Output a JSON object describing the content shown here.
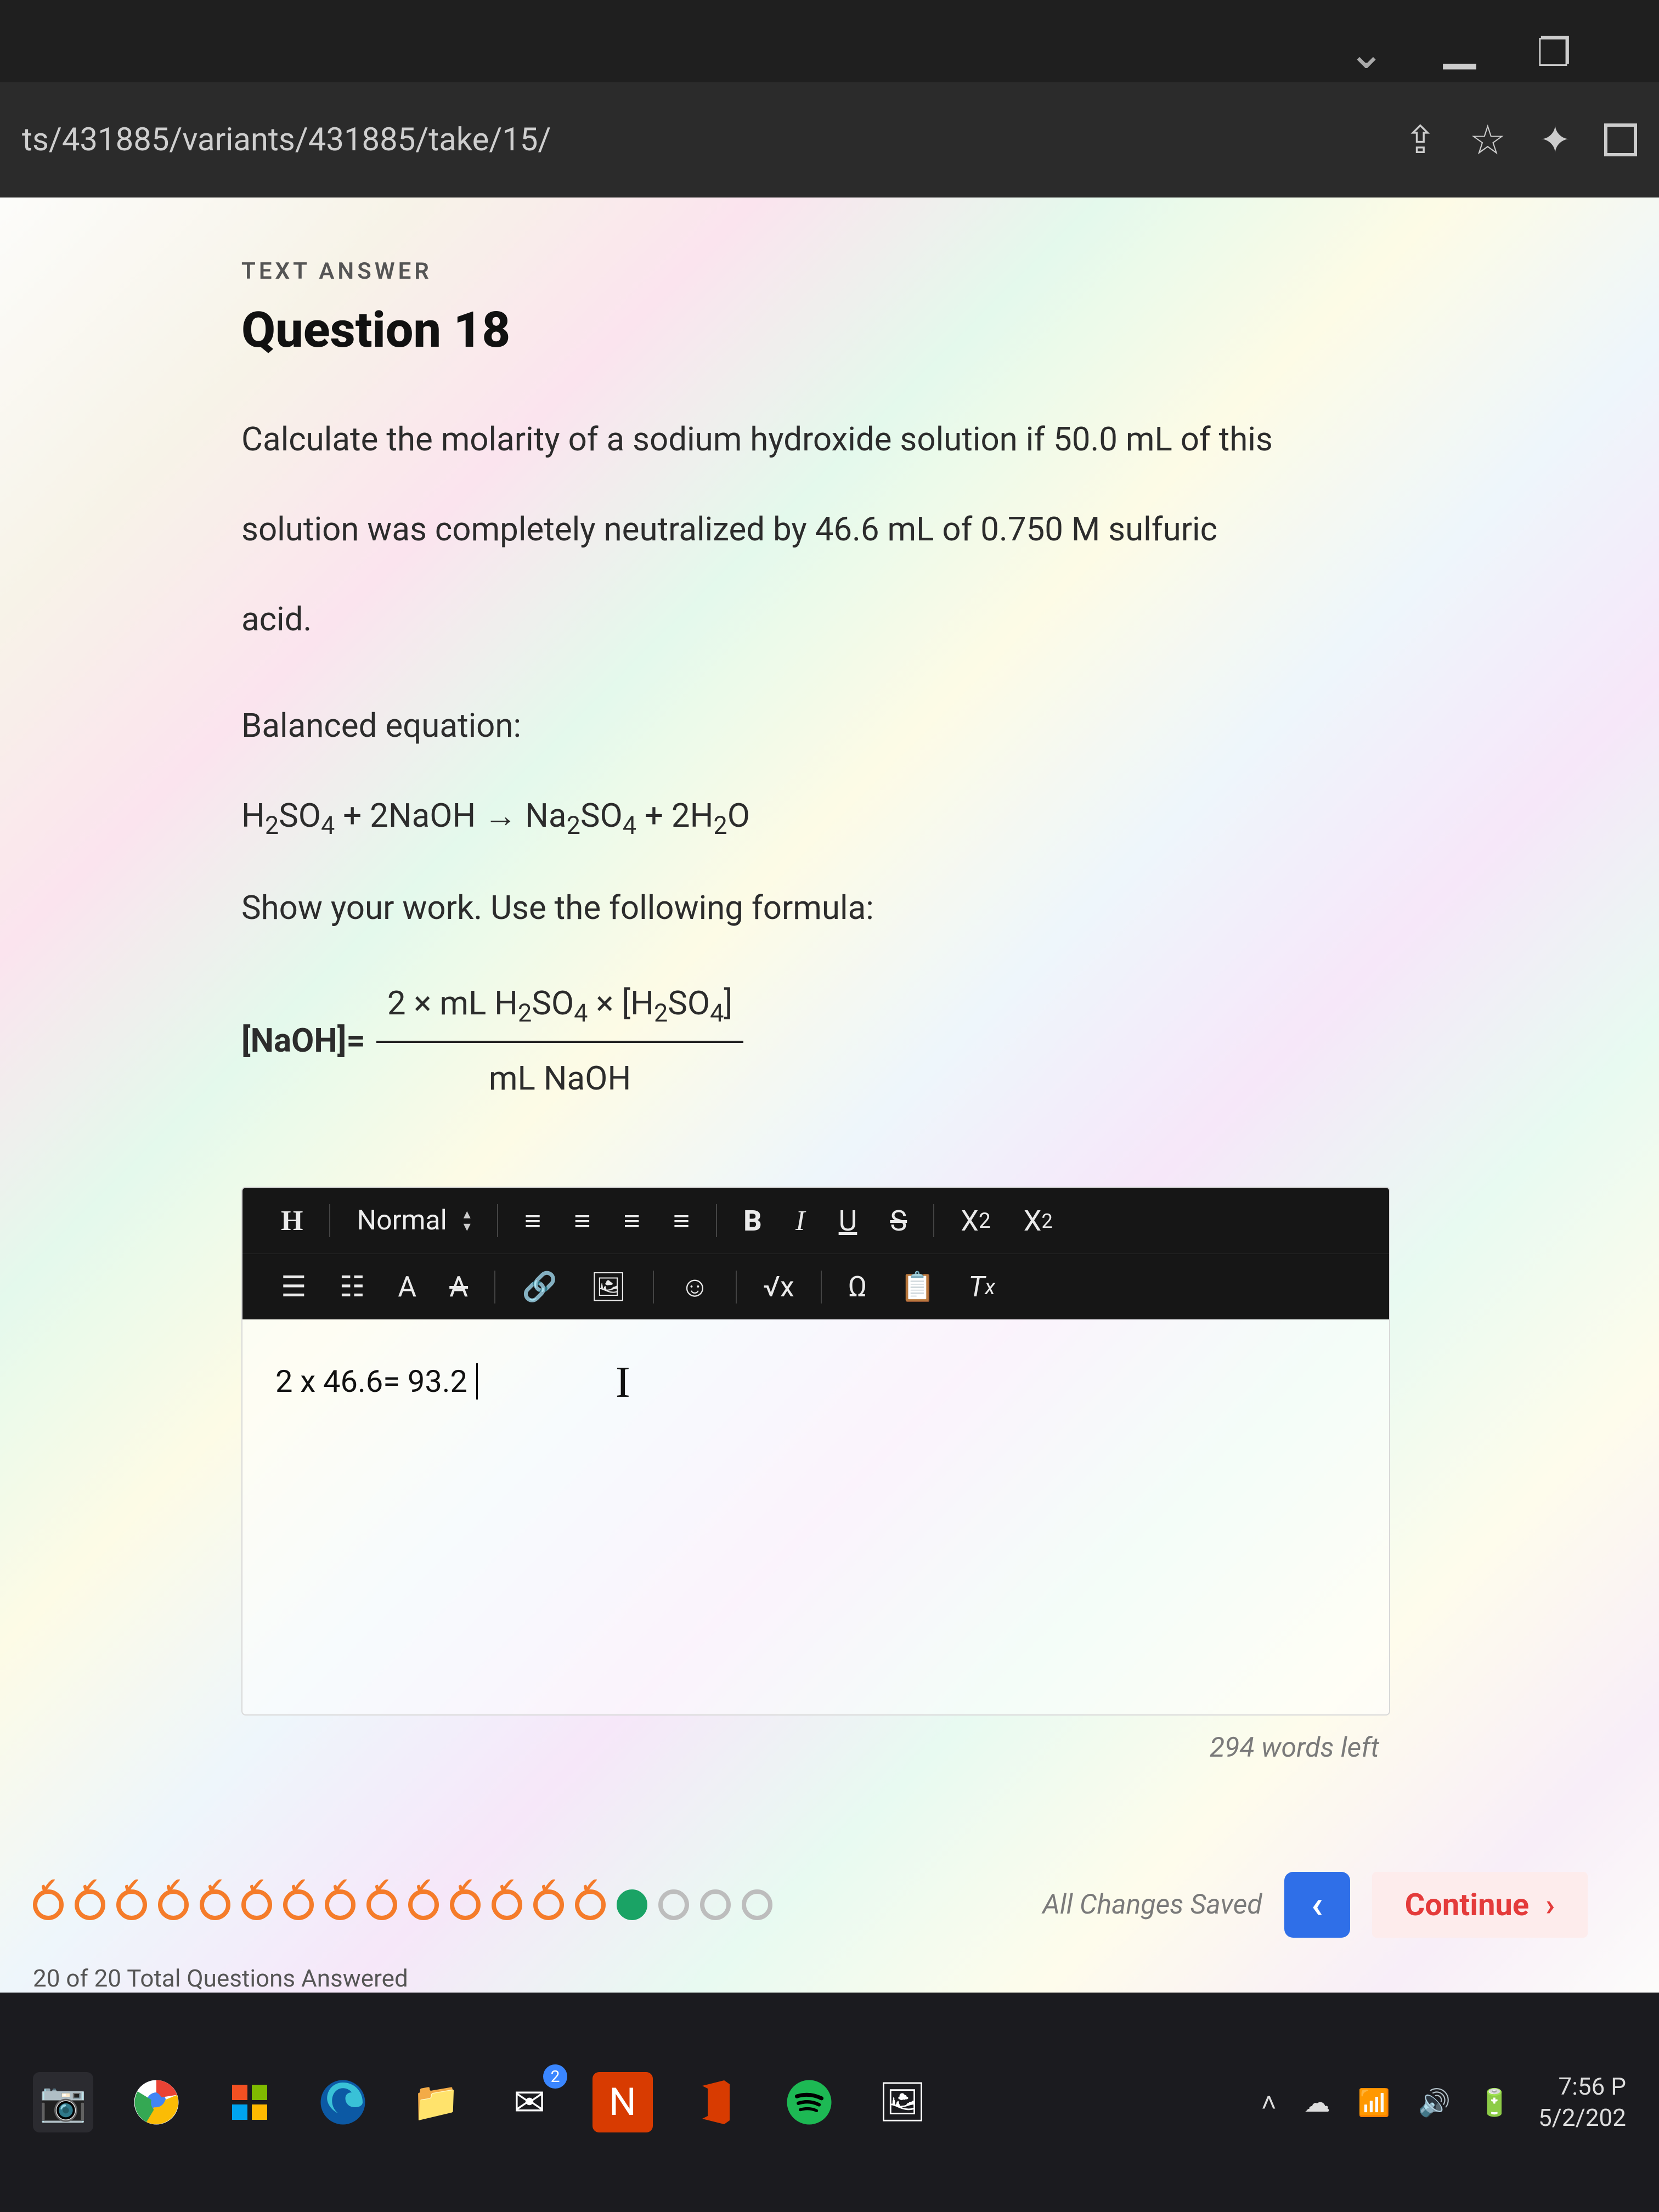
{
  "browser": {
    "url": "ts/431885/variants/431885/take/15/"
  },
  "question": {
    "label": "TEXT ANSWER",
    "title": "Question 18",
    "prompt1": "Calculate the molarity of a sodium hydroxide solution if 50.0 mL of this",
    "prompt2": "solution was completely neutralized by 46.6 mL of 0.750 M sulfuric",
    "prompt3": "acid.",
    "balanced_label": "Balanced equation:",
    "show_work": "Show your work. Use the following formula:",
    "naoh_label": "[NaOH]=",
    "frac_num_prefix": "2 × mL H",
    "frac_num_mid": "SO",
    "frac_num_suffix": " × [H",
    "frac_num_end": "SO",
    "frac_num_close": "]",
    "frac_den": "mL NaOH"
  },
  "toolbar": {
    "heading": "H",
    "normal": "Normal",
    "bold": "B",
    "italic": "I",
    "underline": "U",
    "strike": "S",
    "sub": "X",
    "sub2": "2",
    "sup": "X",
    "sup2": "2",
    "font_A": "A",
    "omega": "Ω",
    "sqrt": "√x",
    "clear": "T",
    "clearx": "x"
  },
  "editor": {
    "content": "2 x 46.6= 93.2",
    "words_left": "294 words left"
  },
  "nav": {
    "status": "All Changes Saved",
    "continue": "Continue",
    "progress": "20 of 20 Total Questions Answered",
    "dot_count": 18,
    "current_index": 14
  },
  "taskbar": {
    "mail_badge": "2",
    "time": "7:56 P",
    "date": "5/2/202"
  }
}
